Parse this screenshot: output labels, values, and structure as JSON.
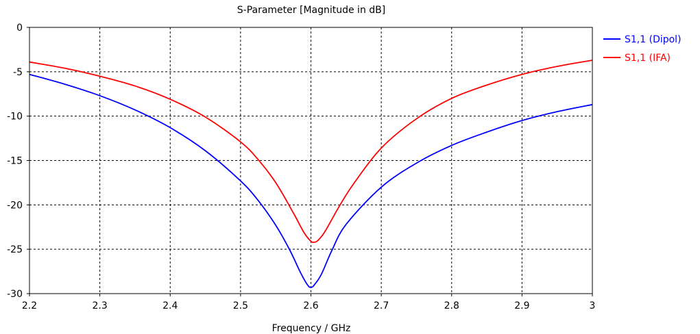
{
  "chart_data": {
    "type": "line",
    "title": "S-Parameter [Magnitude in dB]",
    "xlabel": "Frequency / GHz",
    "ylabel": "",
    "xlim": [
      2.2,
      3.0
    ],
    "ylim": [
      -30,
      0
    ],
    "xticks": [
      2.2,
      2.3,
      2.4,
      2.5,
      2.6,
      2.7,
      2.8,
      2.9,
      3.0
    ],
    "xtick_labels": [
      "2.2",
      "2.3",
      "2.4",
      "2.5",
      "2.6",
      "2.7",
      "2.8",
      "2.9",
      "3"
    ],
    "yticks": [
      0,
      -5,
      -10,
      -15,
      -20,
      -25,
      -30
    ],
    "ytick_labels": [
      "0",
      "-5",
      "-10",
      "-15",
      "-20",
      "-25",
      "-30"
    ],
    "grid": true,
    "legend_position": "top-right outside",
    "series": [
      {
        "name": "S1,1 (Dipol)",
        "color": "#0000ff",
        "x": [
          2.2,
          2.25,
          2.3,
          2.35,
          2.4,
          2.45,
          2.5,
          2.525,
          2.55,
          2.57,
          2.585,
          2.595,
          2.6,
          2.605,
          2.615,
          2.63,
          2.65,
          2.7,
          2.75,
          2.8,
          2.85,
          2.9,
          2.95,
          3.0
        ],
        "y": [
          -5.3,
          -6.4,
          -7.7,
          -9.3,
          -11.3,
          -13.9,
          -17.3,
          -19.5,
          -22.3,
          -25.1,
          -27.6,
          -29.0,
          -29.3,
          -29.0,
          -27.8,
          -25.1,
          -22.2,
          -18.0,
          -15.3,
          -13.3,
          -11.8,
          -10.5,
          -9.5,
          -8.7
        ]
      },
      {
        "name": "S1,1 (IFA)",
        "color": "#ff0000",
        "x": [
          2.2,
          2.25,
          2.3,
          2.35,
          2.4,
          2.45,
          2.5,
          2.525,
          2.55,
          2.575,
          2.59,
          2.6,
          2.605,
          2.61,
          2.62,
          2.64,
          2.66,
          2.7,
          2.75,
          2.8,
          2.85,
          2.9,
          2.95,
          3.0
        ],
        "y": [
          -3.9,
          -4.6,
          -5.5,
          -6.6,
          -8.1,
          -10.1,
          -12.9,
          -14.9,
          -17.5,
          -20.9,
          -23.1,
          -24.1,
          -24.2,
          -24.0,
          -23.0,
          -20.2,
          -17.7,
          -13.6,
          -10.3,
          -8.0,
          -6.5,
          -5.3,
          -4.4,
          -3.7
        ]
      }
    ]
  }
}
